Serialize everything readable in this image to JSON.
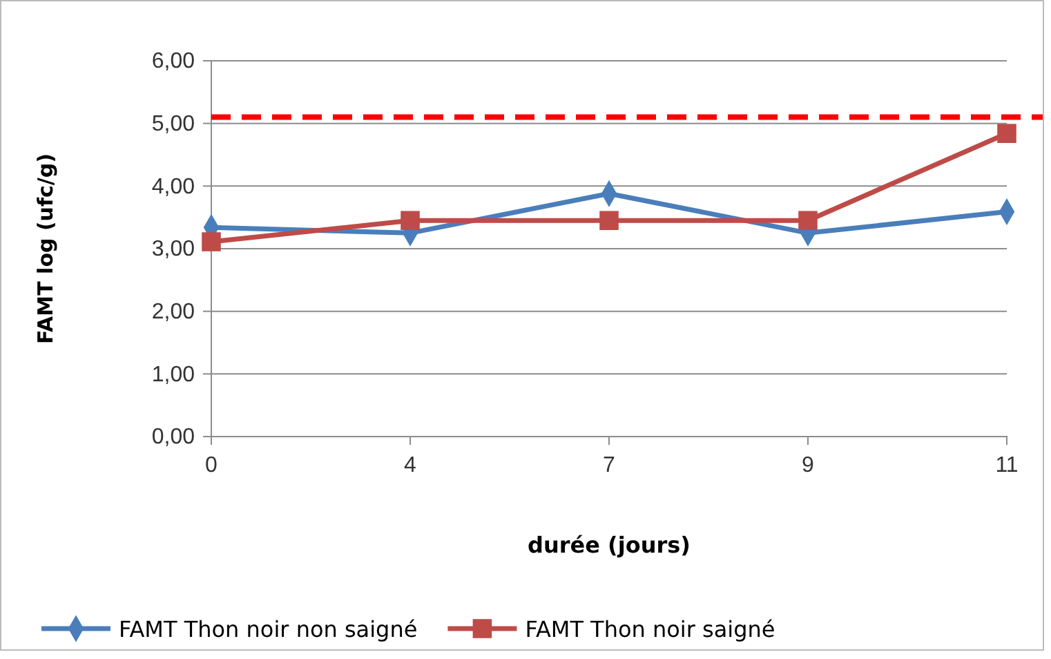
{
  "chart_data": {
    "type": "line",
    "xlabel": "durée (jours)",
    "ylabel": "FAMT log (ufc/g)",
    "categories": [
      "0",
      "4",
      "7",
      "9",
      "11"
    ],
    "series": [
      {
        "name": "FAMT Thon noir non saigné",
        "color": "#4a7ebb",
        "marker": "diamond",
        "values": [
          3.34,
          3.25,
          3.88,
          3.25,
          3.59
        ]
      },
      {
        "name": "FAMT Thon noir saigné",
        "color": "#be4b48",
        "marker": "square",
        "values": [
          3.11,
          3.45,
          3.45,
          3.45,
          4.84
        ]
      }
    ],
    "ylim": [
      0,
      6
    ],
    "yticks": [
      {
        "value": 0,
        "label": "0,00"
      },
      {
        "value": 1,
        "label": "1,00"
      },
      {
        "value": 2,
        "label": "2,00"
      },
      {
        "value": 3,
        "label": "3,00"
      },
      {
        "value": 4,
        "label": "4,00"
      },
      {
        "value": 5,
        "label": "5,00"
      },
      {
        "value": 6,
        "label": "6,00"
      }
    ],
    "grid": "y",
    "legend": "bottom",
    "ref_lines": [
      {
        "axis": "y",
        "value": 5.1,
        "color": "#ff0000",
        "line_style": "dashed"
      }
    ]
  }
}
